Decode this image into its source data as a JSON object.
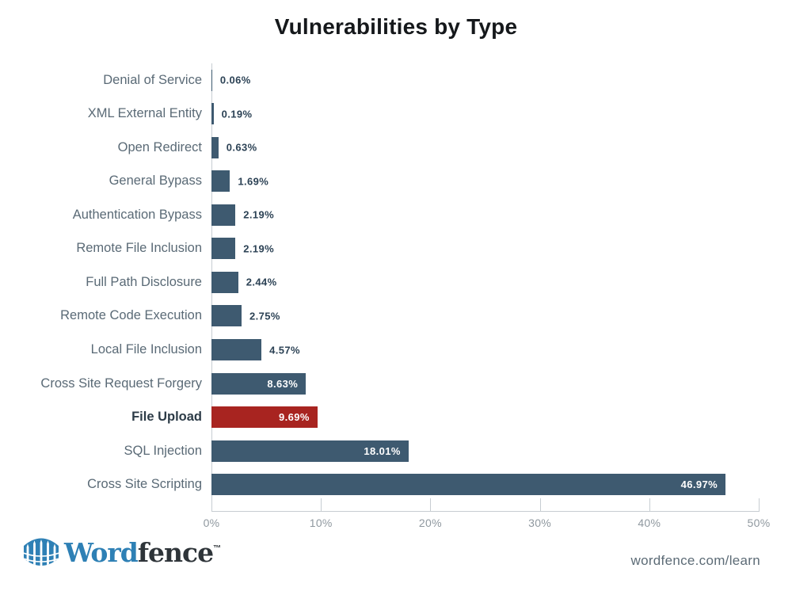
{
  "title": "Vulnerabilities by Type",
  "chart_data": {
    "type": "bar",
    "orientation": "horizontal",
    "title": "Vulnerabilities by Type",
    "categories": [
      "Denial of Service",
      "XML External Entity",
      "Open Redirect",
      "General Bypass",
      "Authentication Bypass",
      "Remote File Inclusion",
      "Full Path Disclosure",
      "Remote Code Execution",
      "Local File Inclusion",
      "Cross Site Request Forgery",
      "File Upload",
      "SQL Injection",
      "Cross Site Scripting"
    ],
    "values": [
      0.06,
      0.19,
      0.63,
      1.69,
      2.19,
      2.19,
      2.44,
      2.75,
      4.57,
      8.63,
      9.69,
      18.01,
      46.97
    ],
    "value_labels": [
      "0.06%",
      "0.19%",
      "0.63%",
      "1.69%",
      "2.19%",
      "2.19%",
      "2.44%",
      "2.75%",
      "4.57%",
      "8.63%",
      "9.69%",
      "18.01%",
      "46.97%"
    ],
    "highlight_index": 10,
    "highlight_category": "File Upload",
    "xlabel": "",
    "ylabel": "",
    "x_ticks": [
      "0%",
      "10%",
      "20%",
      "30%",
      "40%",
      "50%"
    ],
    "xlim": [
      0,
      50
    ],
    "grid": false,
    "legend": "none",
    "bar_color": "#3e5a70",
    "highlight_color": "#a82420",
    "axis_color": "#c7cdd2",
    "tick_label_color": "#8f989f",
    "category_label_color": "#5a6a76",
    "value_label_color": "#2c4255"
  },
  "footer": {
    "logo_word": "Word",
    "logo_fence": "fence",
    "trademark": "™",
    "link": "wordfence.com/learn"
  }
}
